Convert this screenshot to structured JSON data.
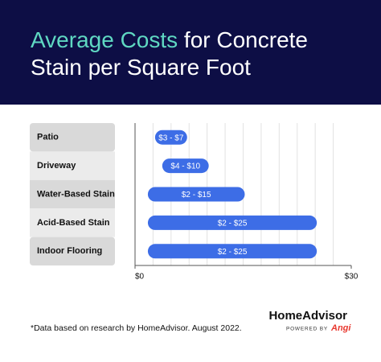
{
  "chart_data": {
    "type": "range_bar",
    "title_highlight": "Average Costs",
    "title": "for Concrete Stain per Square Foot",
    "categories": [
      "Patio",
      "Driveway",
      "Water-Based Stain",
      "Acid-Based Stain",
      "Indoor Flooring"
    ],
    "values": [
      [
        3,
        7
      ],
      [
        4,
        10
      ],
      [
        2,
        15
      ],
      [
        2,
        25
      ],
      [
        2,
        25
      ]
    ],
    "value_labels": [
      "$3 - $7",
      "$4 - $10",
      "$2 - $15",
      "$2 - $25",
      "$2 - $25"
    ],
    "color": "#3d6de6",
    "xlim": [
      0,
      30
    ],
    "xticks": [
      {
        "value": 0,
        "label": "$0"
      },
      {
        "value": 30,
        "label": "$30"
      }
    ],
    "xgrid": [
      2.5,
      5,
      7.5,
      10,
      12.5,
      15,
      17.5,
      20,
      22.5,
      25,
      27.5
    ],
    "grid": true
  },
  "footnote": "*Data based on research by HomeAdvisor. August 2022.",
  "brand": {
    "name": "HomeAdvisor",
    "powered_by": "POWERED BY",
    "partner": "Angi"
  }
}
